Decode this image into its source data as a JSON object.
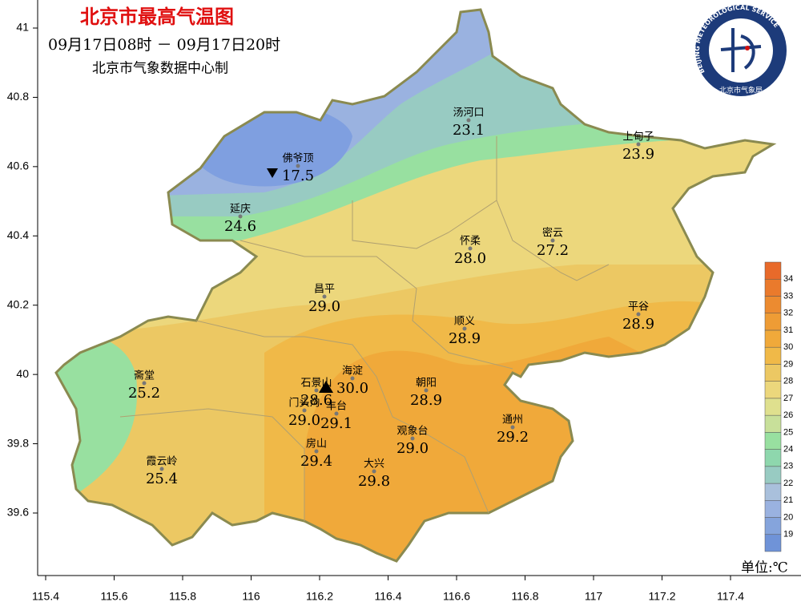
{
  "header": {
    "title": "北京市最高气温图",
    "period": "09月17日08时 － 09月17日20时",
    "producer": "北京市气象数据中心制"
  },
  "logo": {
    "en": "BEIJING METEOROLOGICAL SERVICE",
    "cn": "北京市气象局"
  },
  "axes": {
    "lon_ticks": [
      115.4,
      115.6,
      115.8,
      116,
      116.2,
      116.4,
      116.6,
      116.8,
      117,
      117.2,
      117.4
    ],
    "lat_ticks": [
      39.6,
      39.8,
      40,
      40.2,
      40.4,
      40.6,
      40.8,
      41
    ]
  },
  "stations": [
    {
      "name": "汤河口",
      "value": "23.1"
    },
    {
      "name": "上甸子",
      "value": "23.9"
    },
    {
      "name": "佛爷顶",
      "value": "17.5"
    },
    {
      "name": "延庆",
      "value": "24.6"
    },
    {
      "name": "怀柔",
      "value": "28.0"
    },
    {
      "name": "密云",
      "value": "27.2"
    },
    {
      "name": "昌平",
      "value": "29.0"
    },
    {
      "name": "顺义",
      "value": "28.9"
    },
    {
      "name": "平谷",
      "value": "28.9"
    },
    {
      "name": "斋堂",
      "value": "25.2"
    },
    {
      "name": "海淀",
      "value": "30.0"
    },
    {
      "name": "石景山",
      "value": "28.6"
    },
    {
      "name": "朝阳",
      "value": "28.9"
    },
    {
      "name": "门头沟",
      "value": "29.0"
    },
    {
      "name": "丰台",
      "value": "29.1"
    },
    {
      "name": "观象台",
      "value": "29.0"
    },
    {
      "name": "通州",
      "value": "29.2"
    },
    {
      "name": "房山",
      "value": "29.4"
    },
    {
      "name": "霞云岭",
      "value": "25.4"
    },
    {
      "name": "大兴",
      "value": "29.8"
    }
  ],
  "colorbar": {
    "levels": [
      19,
      20,
      21,
      22,
      23,
      24,
      25,
      26,
      27,
      28,
      29,
      30,
      31,
      32,
      33,
      34
    ],
    "colors": [
      "#6f93d8",
      "#85a4dc",
      "#9ab2e0",
      "#a9c0dc",
      "#98cbc2",
      "#8ed7ad",
      "#98e0a0",
      "#c8e09a",
      "#dfe08e",
      "#ecd77c",
      "#ecc863",
      "#f0b948",
      "#f0a93a",
      "#ee9c35",
      "#ec8b30",
      "#ea7a2c",
      "#e86a2a"
    ],
    "unit": "单位:℃"
  }
}
